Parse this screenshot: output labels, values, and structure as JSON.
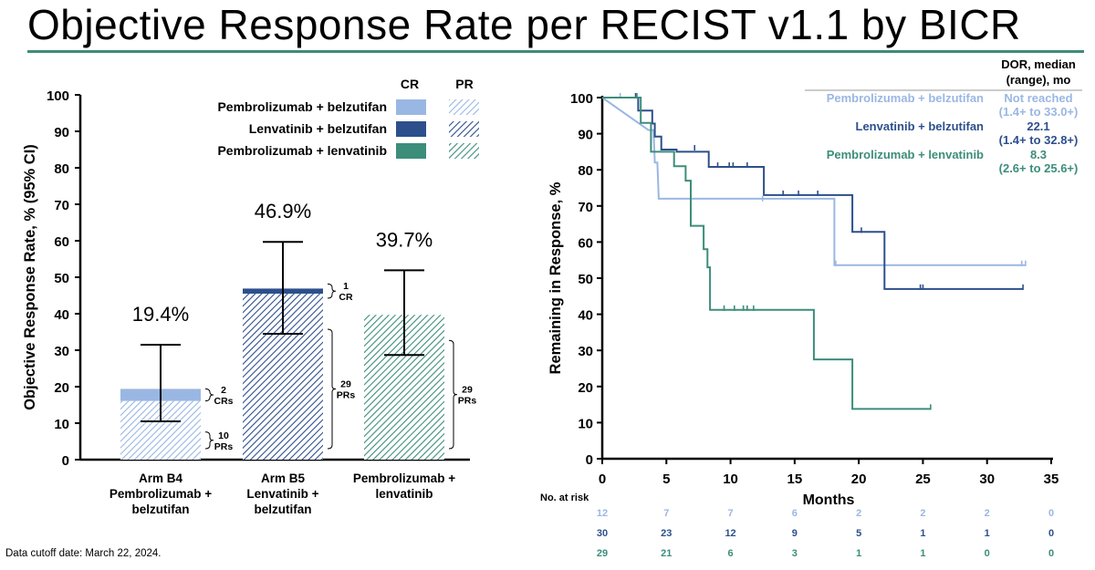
{
  "title": "Objective Response Rate per RECIST v1.1 by BICR",
  "footnote": "Data cutoff date: March 22, 2024.",
  "colors": {
    "pembro_belz": "#9ab7e3",
    "lenva_belz": "#2d4f8c",
    "pembro_lenva": "#3c8d7a",
    "rule": "#3f8c7a"
  },
  "chart_data": [
    {
      "type": "bar",
      "title": "",
      "ylabel": "Objective Response Rate, % (95% CI)",
      "xlabel": "",
      "ylim": [
        0,
        100
      ],
      "yticks": [
        "0",
        "10",
        "20",
        "30",
        "40",
        "50",
        "60",
        "70",
        "80",
        "90",
        "100"
      ],
      "legend_headers": {
        "cr": "CR",
        "pr": "PR"
      },
      "bars": [
        {
          "series": "Pembrolizumab + belzutifan",
          "category_lines": [
            "Arm B4",
            "Pembrolizumab +",
            "belzutifan"
          ],
          "orr": 19.4,
          "orr_label": "19.4%",
          "pr": 16.1,
          "cr": 3.3,
          "ci": [
            10.5,
            31.5
          ],
          "cr_note": [
            "2",
            "CRs"
          ],
          "pr_note": [
            "10",
            "PRs"
          ]
        },
        {
          "series": "Lenvatinib + belzutifan",
          "category_lines": [
            "Arm B5",
            "Lenvatinib +",
            "belzutifan"
          ],
          "orr": 46.9,
          "orr_label": "46.9%",
          "pr": 45.5,
          "cr": 1.4,
          "ci": [
            34.5,
            59.7
          ],
          "cr_note": [
            "1",
            "CR"
          ],
          "pr_note": [
            "29",
            "PRs"
          ]
        },
        {
          "series": "Pembrolizumab + lenvatinib",
          "category_lines": [
            "Pembrolizumab +",
            "lenvatinib"
          ],
          "orr": 39.7,
          "orr_label": "39.7%",
          "pr": 39.7,
          "cr": 0,
          "ci": [
            28.7,
            51.9
          ],
          "cr_note": [],
          "pr_note": [
            "29",
            "PRs"
          ]
        }
      ]
    },
    {
      "type": "line",
      "title": "",
      "xlabel": "Months",
      "ylabel": "Remaining in Response, %",
      "xlim": [
        0,
        35
      ],
      "ylim": [
        0,
        100
      ],
      "xticks": [
        "0",
        "5",
        "10",
        "15",
        "20",
        "25",
        "30",
        "35"
      ],
      "yticks": [
        "0",
        "10",
        "20",
        "30",
        "40",
        "50",
        "60",
        "70",
        "80",
        "90",
        "100"
      ],
      "legend_header": [
        "DOR, median",
        "(range), mo"
      ],
      "risk_label": "No. at risk",
      "series": [
        {
          "name": "Pembrolizumab + belzutifan",
          "dor": "Not reached",
          "range": "(1.4+ to 33.0+)",
          "steps": [
            [
              0,
              100
            ],
            [
              3.6,
              91
            ],
            [
              4,
              91
            ],
            [
              4.1,
              82
            ],
            [
              4.3,
              82
            ],
            [
              4.4,
              72
            ],
            [
              18.1,
              72
            ],
            [
              18.1,
              53.6
            ],
            [
              33,
              53.6
            ]
          ],
          "censors": [
            [
              1.4,
              100
            ],
            [
              12.5,
              71.5
            ],
            [
              18.2,
              53.6
            ],
            [
              32.7,
              53.6
            ],
            [
              33,
              53.6
            ]
          ],
          "risk": [
            "12",
            "7",
            "7",
            "6",
            "2",
            "2",
            "2",
            "0"
          ]
        },
        {
          "name": "Lenvatinib + belzutifan",
          "dor": "22.1",
          "range": "(1.4+ to 32.8+)",
          "steps": [
            [
              0,
              100
            ],
            [
              2.8,
              100
            ],
            [
              2.8,
              96.4
            ],
            [
              3.9,
              96.4
            ],
            [
              3.9,
              92.8
            ],
            [
              4.1,
              92.8
            ],
            [
              4.1,
              89.2
            ],
            [
              4.6,
              89.2
            ],
            [
              4.6,
              85.6
            ],
            [
              5.8,
              85.6
            ],
            [
              5.8,
              85
            ],
            [
              8.3,
              85
            ],
            [
              8.3,
              80.8
            ],
            [
              12.6,
              80.8
            ],
            [
              12.6,
              73
            ],
            [
              19.5,
              73
            ],
            [
              19.5,
              62.8
            ],
            [
              22,
              62.8
            ],
            [
              22,
              47
            ],
            [
              32.8,
              47
            ]
          ],
          "censors": [
            [
              2.6,
              100
            ],
            [
              7.2,
              85.6
            ],
            [
              9,
              80.8
            ],
            [
              9.9,
              80.8
            ],
            [
              10.2,
              80.8
            ],
            [
              11.3,
              80.8
            ],
            [
              14.1,
              73
            ],
            [
              15.3,
              73
            ],
            [
              16.8,
              73
            ],
            [
              20.2,
              62.8
            ],
            [
              24.8,
              47
            ],
            [
              25,
              47
            ],
            [
              32.8,
              47
            ]
          ],
          "risk": [
            "30",
            "23",
            "12",
            "9",
            "5",
            "1",
            "1",
            "0"
          ]
        },
        {
          "name": "Pembrolizumab + lenvatinib",
          "dor": "8.3",
          "range": "(2.6+ to 25.6+)",
          "steps": [
            [
              0,
              100
            ],
            [
              3,
              100
            ],
            [
              3,
              93
            ],
            [
              3.8,
              93
            ],
            [
              3.8,
              85
            ],
            [
              5.6,
              85
            ],
            [
              5.6,
              81
            ],
            [
              6.5,
              81
            ],
            [
              6.5,
              77
            ],
            [
              6.9,
              77
            ],
            [
              6.9,
              64.5
            ],
            [
              7.9,
              64.5
            ],
            [
              7.9,
              58
            ],
            [
              8.2,
              58
            ],
            [
              8.2,
              53
            ],
            [
              8.4,
              53
            ],
            [
              8.4,
              41.2
            ],
            [
              16.5,
              41.2
            ],
            [
              16.5,
              27.5
            ],
            [
              19.5,
              27.5
            ],
            [
              19.5,
              13.8
            ],
            [
              25.6,
              13.8
            ]
          ],
          "censors": [
            [
              2.7,
              100
            ],
            [
              9.5,
              41.2
            ],
            [
              10.3,
              41.2
            ],
            [
              11,
              41.2
            ],
            [
              11.3,
              41.2
            ],
            [
              11.8,
              41.2
            ],
            [
              25.6,
              13.8
            ]
          ],
          "risk": [
            "29",
            "21",
            "6",
            "3",
            "1",
            "1",
            "0",
            "0"
          ]
        }
      ]
    }
  ]
}
